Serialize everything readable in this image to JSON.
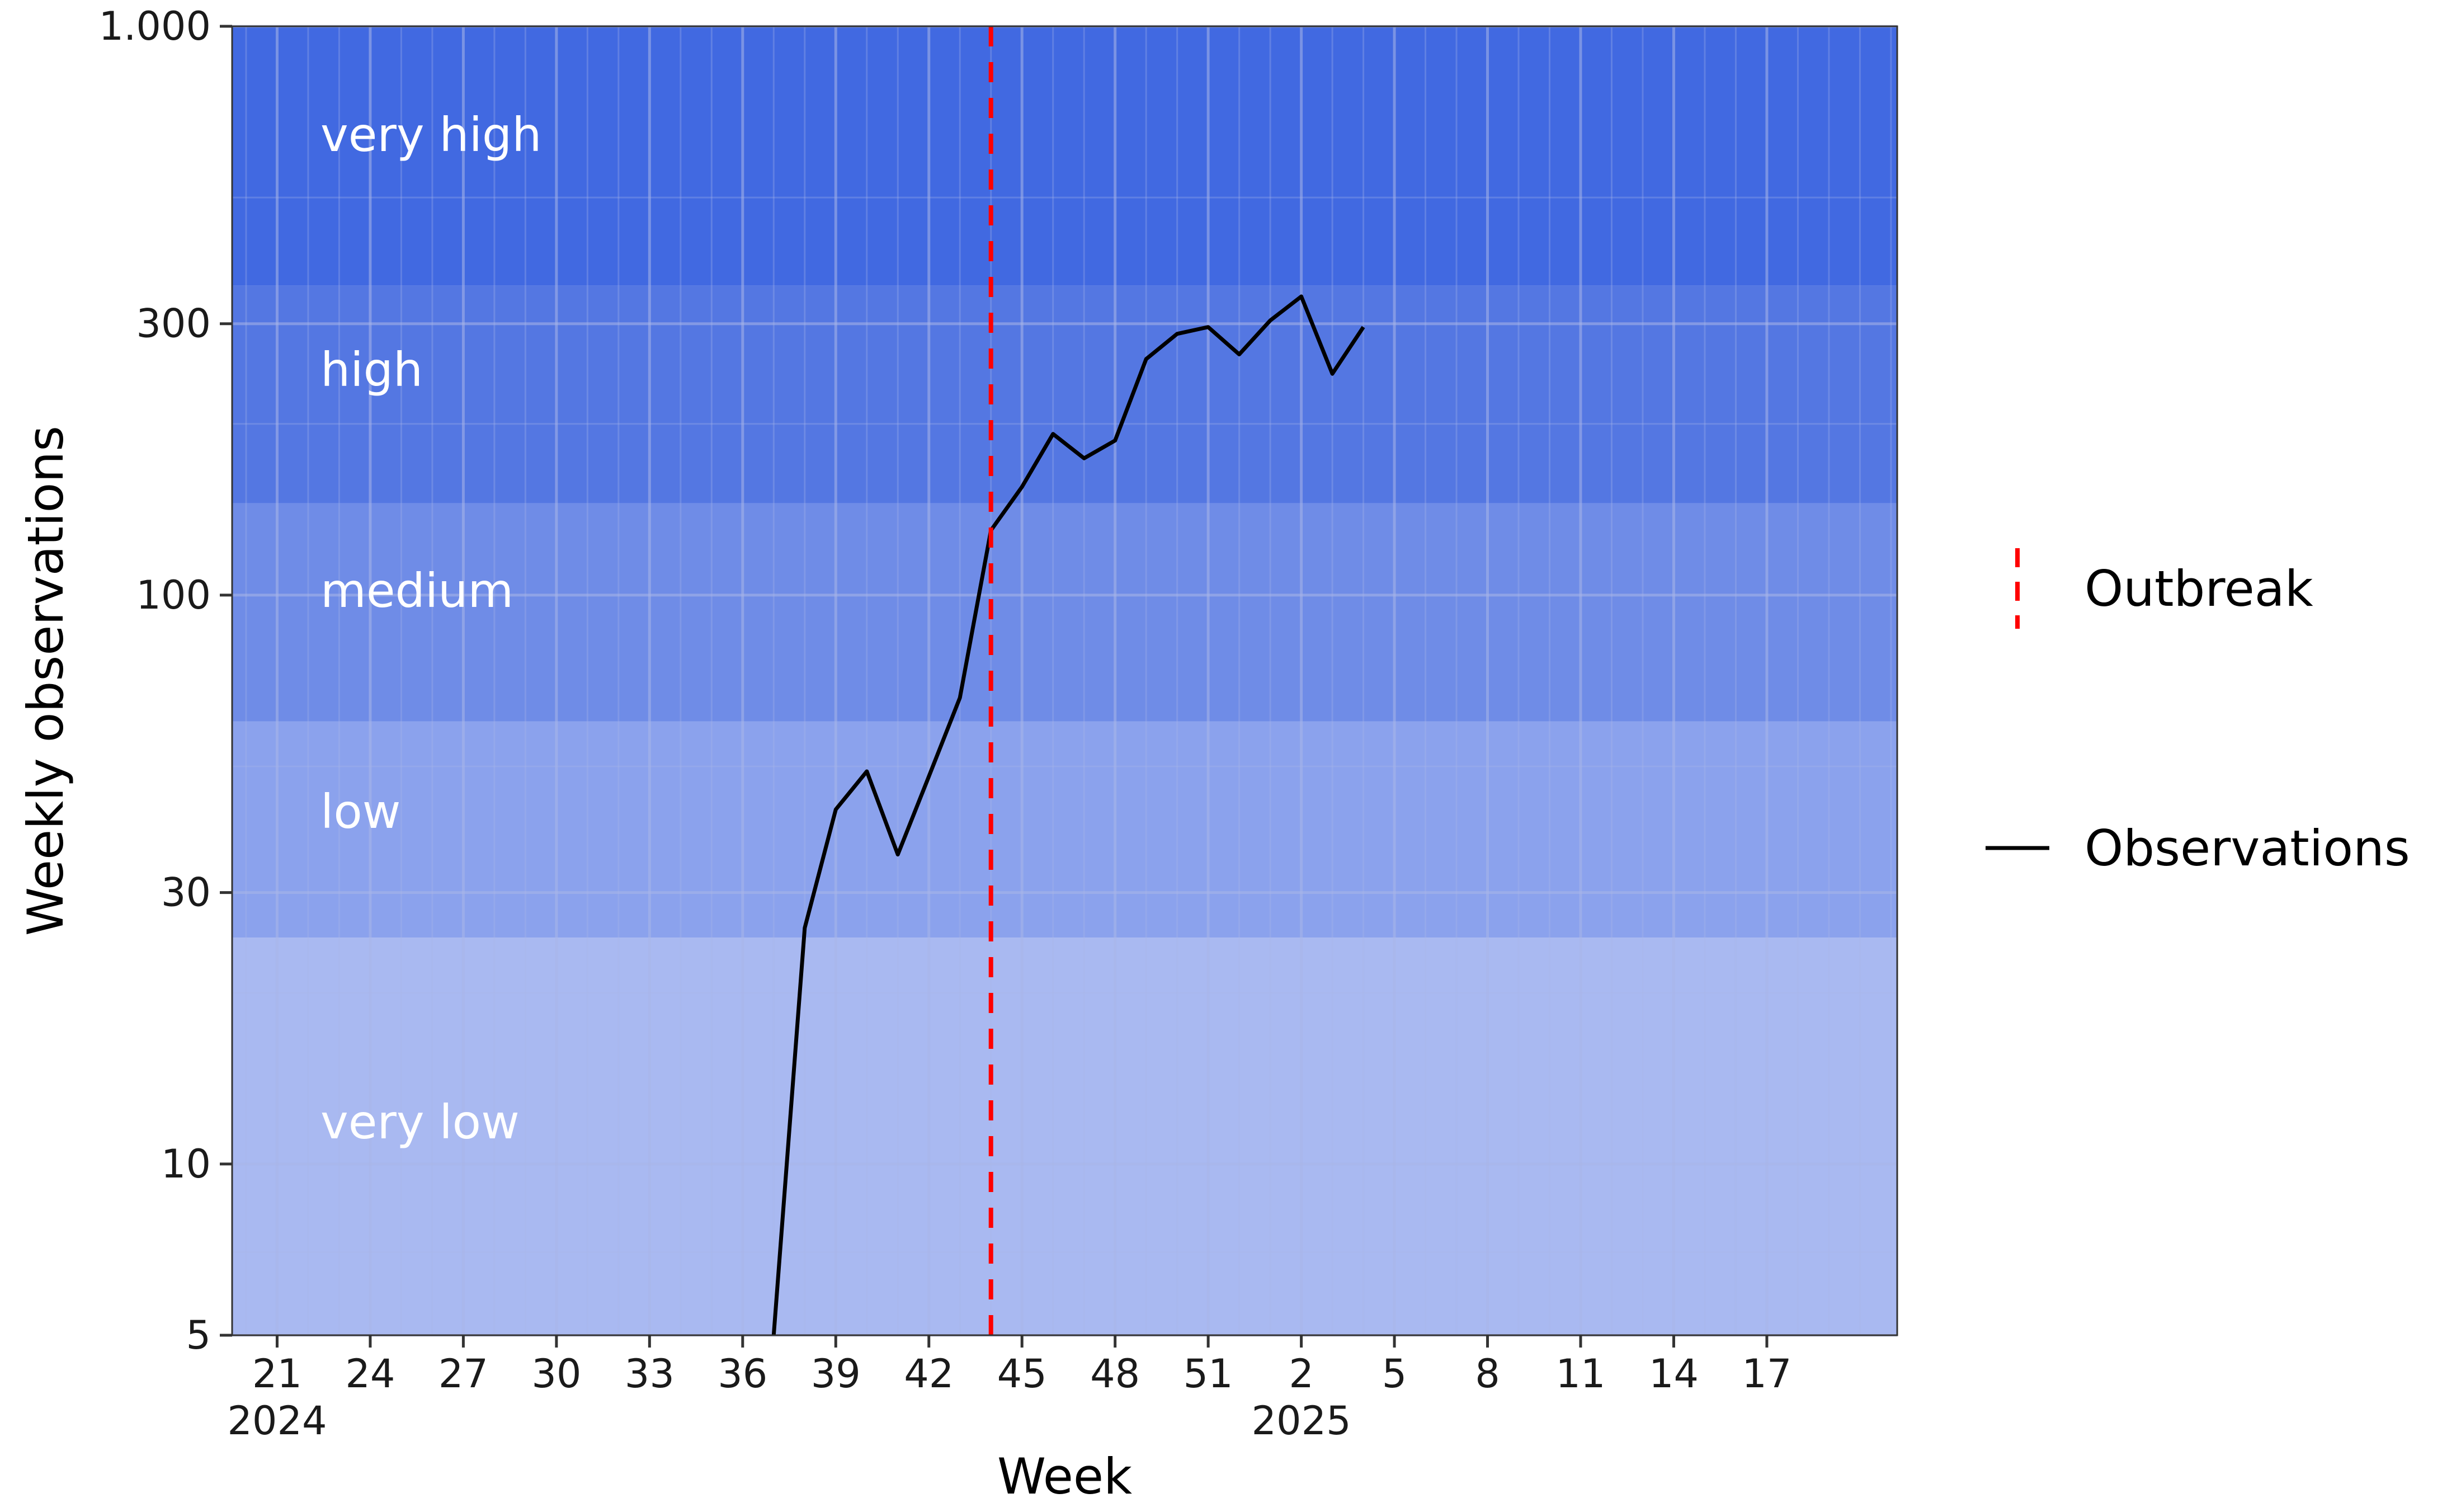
{
  "chart_data": {
    "type": "line",
    "title": "",
    "xlabel": "Week",
    "ylabel": "Weekly observations",
    "y_scale": "log",
    "ylim": [
      5,
      1000
    ],
    "y_ticks": [
      5,
      10,
      30,
      100,
      300,
      1000
    ],
    "y_tick_labels": [
      "5",
      "10",
      "30",
      "100",
      "300",
      "1.000"
    ],
    "x_domain": [
      "2024-W20",
      "2025-W21"
    ],
    "x_ticks": [
      {
        "week": "2024-W21",
        "label": "21",
        "year_label": "2024"
      },
      {
        "week": "2024-W24",
        "label": "24"
      },
      {
        "week": "2024-W27",
        "label": "27"
      },
      {
        "week": "2024-W30",
        "label": "30"
      },
      {
        "week": "2024-W33",
        "label": "33"
      },
      {
        "week": "2024-W36",
        "label": "36"
      },
      {
        "week": "2024-W39",
        "label": "39"
      },
      {
        "week": "2024-W42",
        "label": "42"
      },
      {
        "week": "2024-W45",
        "label": "45"
      },
      {
        "week": "2024-W48",
        "label": "48"
      },
      {
        "week": "2024-W51",
        "label": "51"
      },
      {
        "week": "2025-W02",
        "label": "2",
        "year_label": "2025"
      },
      {
        "week": "2025-W05",
        "label": "5"
      },
      {
        "week": "2025-W08",
        "label": "8"
      },
      {
        "week": "2025-W11",
        "label": "11"
      },
      {
        "week": "2025-W14",
        "label": "14"
      },
      {
        "week": "2025-W17",
        "label": "17"
      }
    ],
    "bands": [
      {
        "label": "very low",
        "from": 5,
        "to": 25,
        "color": "#a9b9f1"
      },
      {
        "label": "low",
        "from": 25,
        "to": 60,
        "color": "#8ba2ed"
      },
      {
        "label": "medium",
        "from": 60,
        "to": 145,
        "color": "#6f8ce7"
      },
      {
        "label": "high",
        "from": 145,
        "to": 350,
        "color": "#5477e2"
      },
      {
        "label": "very high",
        "from": 350,
        "to": 1000,
        "color": "#4169e1"
      }
    ],
    "series": [
      {
        "name": "Observations",
        "color": "#000000",
        "points": [
          {
            "week": "2024-W37",
            "value": 5
          },
          {
            "week": "2024-W38",
            "value": 26
          },
          {
            "week": "2024-W39",
            "value": 42
          },
          {
            "week": "2024-W40",
            "value": 49
          },
          {
            "week": "2024-W41",
            "value": 35
          },
          {
            "week": "2024-W42",
            "value": 48
          },
          {
            "week": "2024-W43",
            "value": 66
          },
          {
            "week": "2024-W44",
            "value": 130
          },
          {
            "week": "2024-W45",
            "value": 155
          },
          {
            "week": "2024-W46",
            "value": 192
          },
          {
            "week": "2024-W47",
            "value": 174
          },
          {
            "week": "2024-W48",
            "value": 187
          },
          {
            "week": "2024-W49",
            "value": 260
          },
          {
            "week": "2024-W50",
            "value": 288
          },
          {
            "week": "2024-W51",
            "value": 296
          },
          {
            "week": "2024-W52",
            "value": 265
          },
          {
            "week": "2025-W01",
            "value": 304
          },
          {
            "week": "2025-W02",
            "value": 335
          },
          {
            "week": "2025-W03",
            "value": 245
          },
          {
            "week": "2025-W04",
            "value": 296
          }
        ]
      }
    ],
    "vlines": [
      {
        "name": "Outbreak",
        "week": "2024-W44",
        "color": "#ff0000",
        "style": "dashed"
      }
    ],
    "legend": {
      "position": "right",
      "entries": [
        {
          "label": "Outbreak",
          "style": "dashed",
          "color": "#ff0000"
        },
        {
          "label": "Observations",
          "style": "solid",
          "color": "#000000"
        }
      ]
    },
    "grid": true
  }
}
